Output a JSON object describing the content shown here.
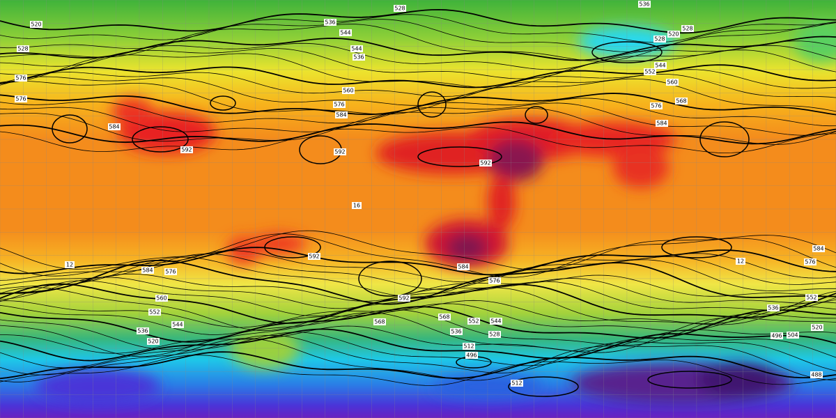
{
  "contour_labels": [
    "520",
    "528",
    "528",
    "536",
    "536",
    "544",
    "544",
    "536",
    "528",
    "520",
    "528",
    "552",
    "544",
    "560",
    "568",
    "576",
    "584",
    "576",
    "576",
    "584",
    "592",
    "592",
    "592",
    "592",
    "584",
    "576",
    "584",
    "576",
    "592",
    "576",
    "584",
    "568",
    "552",
    "544",
    "528",
    "536",
    "496",
    "512",
    "536",
    "520",
    "504",
    "496",
    "552",
    "488",
    "536",
    "520",
    "552",
    "544",
    "560",
    "568",
    "512",
    "16",
    "12",
    "12",
    "560",
    "584",
    "576"
  ]
}
